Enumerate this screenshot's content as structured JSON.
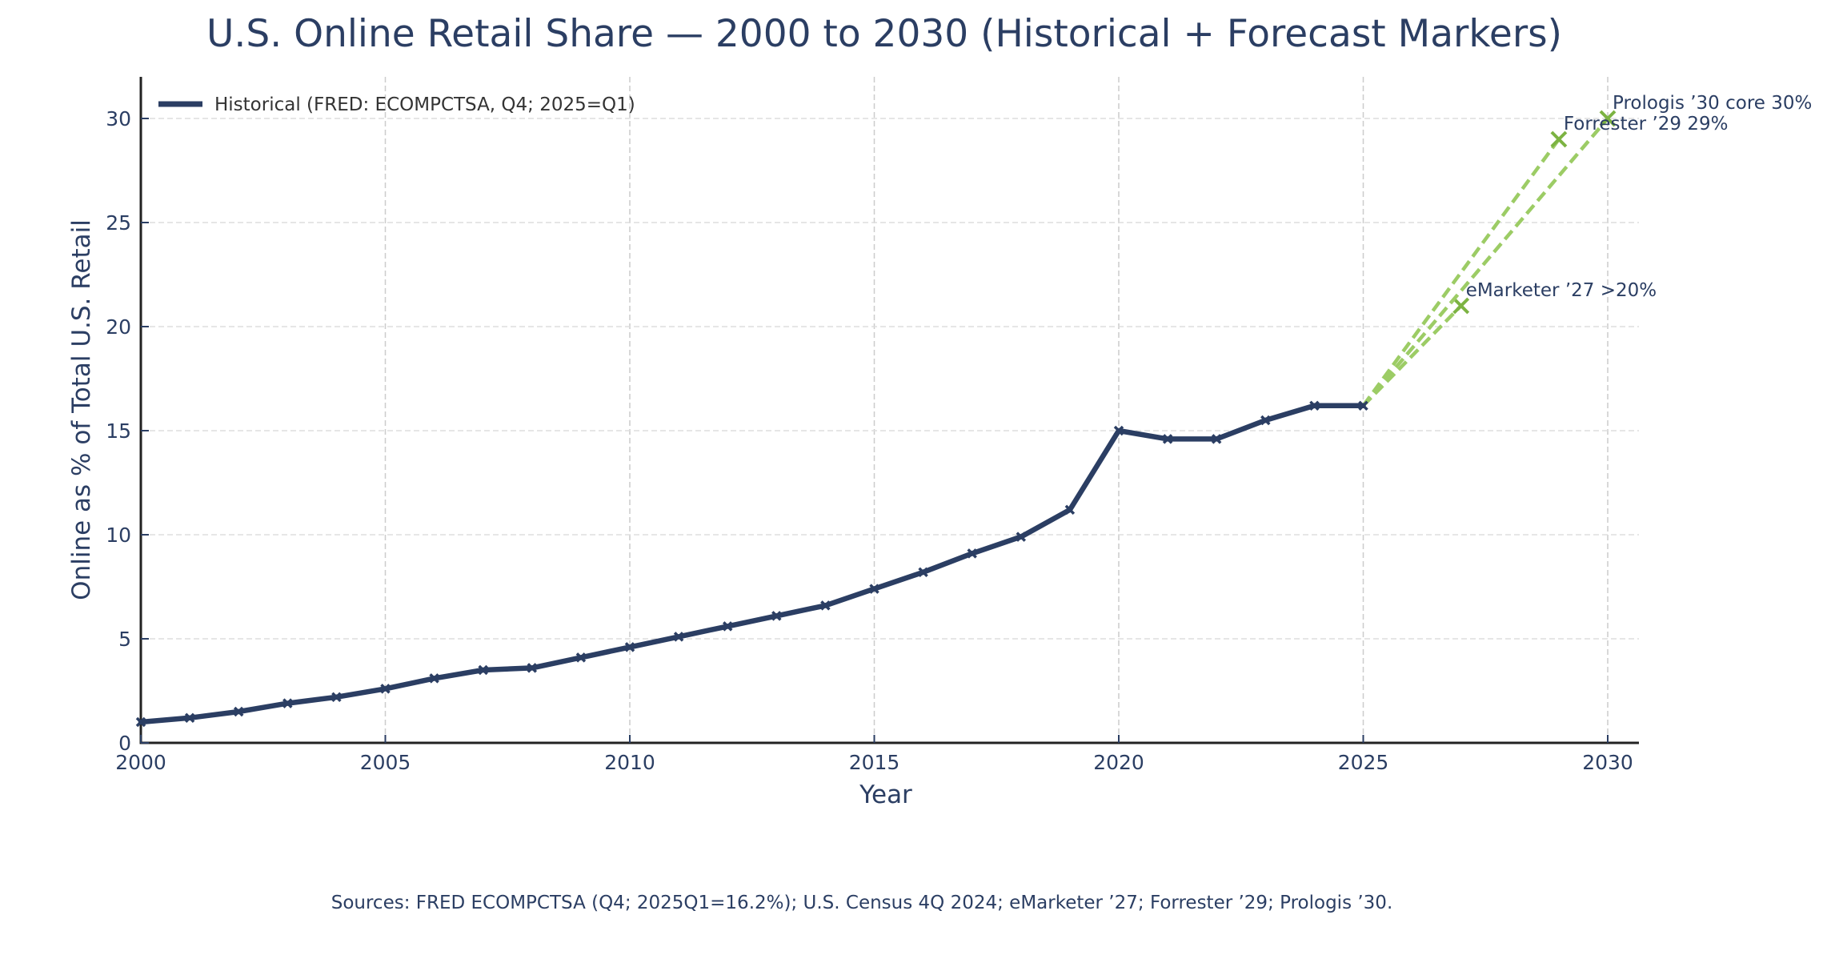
{
  "chart_data": {
    "type": "line",
    "title": "U.S. Online Retail Share — 2000 to 2030 (Historical + Forecast Markers)",
    "xlabel": "Year",
    "ylabel": "Online as % of Total U.S. Retail",
    "xlim": [
      2000,
      2030
    ],
    "ylim": [
      0,
      32
    ],
    "xticks": [
      2000,
      2005,
      2010,
      2015,
      2020,
      2025,
      2030
    ],
    "yticks": [
      0,
      5,
      10,
      15,
      20,
      25,
      30
    ],
    "grid": true,
    "legend": {
      "placement": "top-left",
      "entries": [
        "Historical (FRED: ECOMPCTSA, Q4; 2025=Q1)"
      ]
    },
    "series": [
      {
        "name": "Historical (FRED: ECOMPCTSA, Q4; 2025=Q1)",
        "style": "solid",
        "color": "#2b3e63",
        "x": [
          2000,
          2001,
          2002,
          2003,
          2004,
          2005,
          2006,
          2007,
          2008,
          2009,
          2010,
          2011,
          2012,
          2013,
          2014,
          2015,
          2016,
          2017,
          2018,
          2019,
          2020,
          2021,
          2022,
          2023,
          2024,
          2025
        ],
        "values": [
          1.0,
          1.2,
          1.5,
          1.9,
          2.2,
          2.6,
          3.1,
          3.5,
          3.6,
          4.1,
          4.6,
          5.1,
          5.6,
          6.1,
          6.6,
          7.4,
          8.2,
          9.1,
          9.9,
          11.2,
          15.0,
          14.6,
          14.6,
          15.5,
          16.2,
          16.2
        ]
      }
    ],
    "forecasts": [
      {
        "name": "eMarketer",
        "from": [
          2025,
          16.2
        ],
        "x": 2027,
        "value": 21,
        "label": "eMarketer ’27 >20%"
      },
      {
        "name": "Forrester",
        "from": [
          2025,
          16.2
        ],
        "x": 2029,
        "value": 29,
        "label": "Forrester ’29 29%"
      },
      {
        "name": "Prologis",
        "from": [
          2025,
          16.2
        ],
        "x": 2030,
        "value": 30,
        "label": "Prologis ’30 core 30%"
      }
    ],
    "forecast_line_color": "#9ccc65",
    "forecast_marker_color": "#7cb342",
    "footnote": "Sources: FRED ECOMPCTSA (Q4; 2025Q1=16.2%); U.S. Census 4Q 2024; eMarketer ’27; Forrester ’29; Prologis ’30."
  }
}
